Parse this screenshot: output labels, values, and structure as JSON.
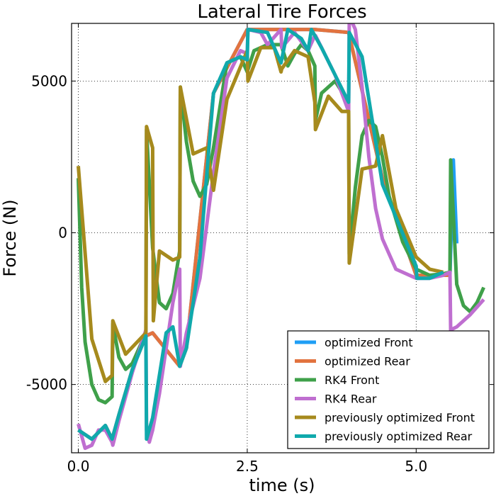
{
  "chart_data": {
    "type": "line",
    "title": "Lateral Tire Forces",
    "xlabel": "time (s)",
    "ylabel": "Force (N)",
    "xlim": [
      -0.1,
      6.15
    ],
    "ylim": [
      -7250,
      6900
    ],
    "grid": true,
    "legend_position": "bottom-right",
    "x_ticks": [
      0.0,
      2.5,
      5.0
    ],
    "x_tick_labels": [
      "0.0",
      "2.5",
      "5.0"
    ],
    "y_ticks": [
      -5000,
      0,
      5000
    ],
    "y_tick_labels": [
      "-5000",
      "0",
      "5000"
    ],
    "series": [
      {
        "name": "optimized Front",
        "color": "#1f9ef5",
        "x": [
          0.0,
          0.2,
          0.4,
          0.5,
          0.6,
          0.8,
          1.0,
          1.1,
          1.5,
          1.6,
          2.0,
          2.5,
          3.0,
          3.5,
          4.0,
          4.5,
          5.0,
          5.5,
          5.55,
          5.6
        ],
        "y": [
          -6500,
          -6800,
          -6350,
          -6800,
          -6000,
          -4500,
          -3400,
          -3300,
          -4400,
          -3800,
          4600,
          6700,
          6700,
          6700,
          6600,
          1800,
          -1400,
          -1400,
          2400,
          -350
        ]
      },
      {
        "name": "optimized Rear",
        "color": "#e2733f",
        "x": [
          0.0,
          0.2,
          0.4,
          0.5,
          0.6,
          0.8,
          1.0,
          1.1,
          1.5,
          1.6,
          2.0,
          2.5,
          3.0,
          3.5,
          4.0,
          4.5,
          5.0,
          5.5
        ],
        "y": [
          -6500,
          -6800,
          -6350,
          -6800,
          -6000,
          -4500,
          -3400,
          -3300,
          -4400,
          -3800,
          4600,
          6700,
          6700,
          6700,
          6600,
          1800,
          -1400,
          -1400
        ]
      },
      {
        "name": "RK4 Front",
        "color": "#3fa04a",
        "x": [
          0.0,
          0.05,
          0.1,
          0.2,
          0.3,
          0.4,
          0.5,
          0.51,
          0.6,
          0.7,
          0.8,
          0.9,
          1.0,
          1.01,
          1.1,
          1.2,
          1.3,
          1.4,
          1.5,
          1.51,
          1.6,
          1.7,
          1.8,
          1.9,
          2.0,
          2.2,
          2.4,
          2.5,
          2.6,
          2.8,
          3.0,
          3.1,
          3.2,
          3.3,
          3.4,
          3.5,
          3.51,
          3.6,
          3.8,
          4.0,
          4.01,
          4.1,
          4.2,
          4.3,
          4.4,
          4.5,
          4.6,
          4.8,
          5.0,
          5.2,
          5.4,
          5.5,
          5.51,
          5.6,
          5.7,
          5.8,
          5.9,
          6.0
        ],
        "y": [
          1800,
          -1800,
          -3600,
          -5000,
          -5500,
          -5600,
          -5400,
          -3000,
          -4100,
          -4500,
          -4300,
          -3800,
          -3300,
          3400,
          -500,
          -2300,
          -2500,
          -2000,
          -600,
          4800,
          3000,
          1700,
          1200,
          1600,
          2800,
          5600,
          5800,
          5300,
          6000,
          6200,
          6200,
          5500,
          5900,
          6200,
          6000,
          5500,
          3700,
          4600,
          5000,
          4300,
          -700,
          1500,
          3200,
          3700,
          3500,
          2500,
          1200,
          -300,
          -1200,
          -1400,
          -1350,
          -1300,
          2400,
          -1700,
          -2400,
          -2600,
          -2300,
          -1800
        ]
      },
      {
        "name": "RK4 Rear",
        "color": "#bf6fd0",
        "x": [
          0.0,
          0.1,
          0.2,
          0.3,
          0.4,
          0.5,
          0.51,
          0.6,
          0.7,
          0.8,
          0.9,
          1.0,
          1.01,
          1.05,
          1.1,
          1.2,
          1.3,
          1.4,
          1.5,
          1.51,
          1.6,
          1.8,
          2.0,
          2.2,
          2.4,
          2.5,
          2.51,
          2.7,
          2.8,
          3.0,
          3.01,
          3.2,
          3.4,
          3.5,
          3.51,
          3.6,
          3.8,
          4.0,
          4.01,
          4.05,
          4.1,
          4.2,
          4.3,
          4.4,
          4.5,
          4.7,
          5.0,
          5.2,
          5.4,
          5.5,
          5.51,
          5.6,
          5.8,
          6.0
        ],
        "y": [
          -6300,
          -7100,
          -7000,
          -6500,
          -6500,
          -6900,
          -7000,
          -6200,
          -5400,
          -4600,
          -3900,
          -3200,
          -6500,
          -6900,
          -6500,
          -5300,
          -3800,
          -2300,
          -1200,
          -4400,
          -3300,
          -1500,
          2000,
          5100,
          6000,
          5900,
          6700,
          6600,
          6200,
          6700,
          6100,
          6600,
          6000,
          6500,
          6500,
          6100,
          5200,
          4000,
          6900,
          6950,
          6700,
          4800,
          2500,
          800,
          -200,
          -1200,
          -1500,
          -1500,
          -1400,
          -1300,
          -3200,
          -3100,
          -2700,
          -2200
        ]
      },
      {
        "name": "previously optimized Front",
        "color": "#a68a1d",
        "x": [
          0.0,
          0.2,
          0.4,
          0.5,
          0.51,
          0.7,
          1.0,
          1.01,
          1.1,
          1.11,
          1.2,
          1.4,
          1.5,
          1.51,
          1.7,
          1.9,
          2.0,
          2.2,
          2.5,
          2.51,
          2.7,
          2.9,
          3.0,
          3.01,
          3.2,
          3.4,
          3.5,
          3.51,
          3.7,
          3.9,
          4.0,
          4.01,
          4.2,
          4.4,
          4.5,
          4.7,
          5.0,
          5.2,
          5.4
        ],
        "y": [
          2200,
          -3500,
          -4900,
          -4700,
          -2900,
          -4000,
          -3300,
          3500,
          2800,
          -2900,
          -600,
          -900,
          -800,
          4800,
          2600,
          2800,
          1400,
          4400,
          6000,
          5000,
          6100,
          6100,
          5300,
          5400,
          6000,
          5800,
          4300,
          3400,
          4500,
          4000,
          4000,
          -1000,
          2100,
          2200,
          3200,
          800,
          -800,
          -1200,
          -1300
        ]
      },
      {
        "name": "previously optimized Rear",
        "color": "#10a9ac",
        "x": [
          0.0,
          0.2,
          0.4,
          0.5,
          0.6,
          0.8,
          1.0,
          1.01,
          1.1,
          1.3,
          1.4,
          1.5,
          1.6,
          1.8,
          2.0,
          2.2,
          2.4,
          2.5,
          2.51,
          2.8,
          3.0,
          3.1,
          3.3,
          3.4,
          3.45,
          3.6,
          3.8,
          4.0,
          4.01,
          4.2,
          4.5,
          5.0,
          5.01,
          5.2,
          5.4
        ],
        "y": [
          -6500,
          -6800,
          -6350,
          -6800,
          -6000,
          -4500,
          -3400,
          -6800,
          -6100,
          -3300,
          -3100,
          -4400,
          -3800,
          -800,
          4600,
          5600,
          5800,
          5700,
          6700,
          6600,
          5600,
          6700,
          6400,
          6000,
          6700,
          6100,
          5200,
          4300,
          6600,
          5800,
          1600,
          -1100,
          -1500,
          -1500,
          -1300
        ]
      }
    ]
  }
}
